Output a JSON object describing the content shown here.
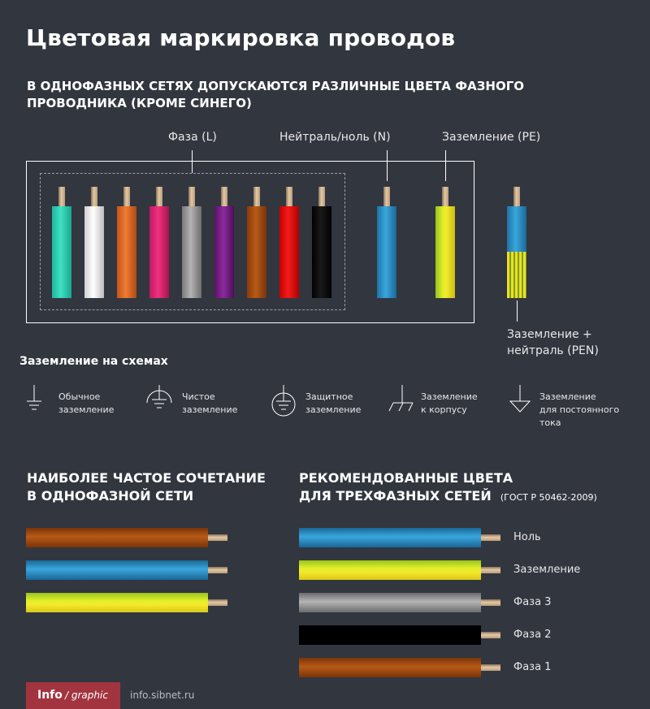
{
  "title": "Цветовая маркировка проводов",
  "subtitle": "В ОДНОФАЗНЫХ СЕТЯХ ДОПУСКАЮТСЯ РАЗЛИЧНЫЕ ЦВЕТА ФАЗНОГО ПРОВОДНИКА (КРОМЕ СИНЕГО)",
  "labels": {
    "phase": "Фаза (L)",
    "neutral": "Нейтраль/ноль (N)",
    "earth": "Заземление (PE)",
    "pen_line1": "Заземление +",
    "pen_line2": "нейтраль (PEN)"
  },
  "phase_wire_colors": [
    "turquoise",
    "white",
    "orange",
    "pink",
    "grey",
    "violet",
    "brown",
    "red",
    "black"
  ],
  "colors": {
    "background": "#32363f",
    "neutral_blue": "#2a8fc7",
    "earth_green": "#b9d32b",
    "earth_yellow": "#f2e52b",
    "brown": "#9a4a12",
    "badge": "#a2343f"
  },
  "grounding": {
    "heading": "Заземление на схемах",
    "symbols": [
      {
        "icon": "ordinary-ground-icon",
        "line1": "Обычное",
        "line2": "заземление",
        "line3": ""
      },
      {
        "icon": "clean-ground-icon",
        "line1": "Чистое",
        "line2": "заземление",
        "line3": ""
      },
      {
        "icon": "protective-ground-icon",
        "line1": "Защитное",
        "line2": "заземление",
        "line3": ""
      },
      {
        "icon": "chassis-ground-icon",
        "line1": "Заземление",
        "line2": "к корпусу",
        "line3": ""
      },
      {
        "icon": "dc-ground-icon",
        "line1": "Заземление",
        "line2": "для постоянного",
        "line3": "тока"
      }
    ]
  },
  "single_phase": {
    "heading_line1": "НАИБОЛЕЕ ЧАСТОЕ СОЧЕТАНИЕ",
    "heading_line2": "В ОДНОФАЗНОЙ СЕТИ",
    "wires": [
      "brown",
      "blue",
      "yellow-green"
    ]
  },
  "three_phase": {
    "heading_line1": "РЕКОМЕНДОВАННЫЕ ЦВЕТА",
    "heading_line2": "ДЛЯ ТРЕХФАЗНЫХ СЕТЕЙ",
    "standard": "(ГОСТ Р 50462-2009)",
    "wires": [
      {
        "color": "blue",
        "label": "Ноль"
      },
      {
        "color": "yellow-green",
        "label": "Заземление"
      },
      {
        "color": "grey",
        "label": "Фаза 3"
      },
      {
        "color": "black",
        "label": "Фаза 2"
      },
      {
        "color": "brown",
        "label": "Фаза 1"
      }
    ]
  },
  "footer": {
    "badge_bold": "Info",
    "badge_italic": "/ graphic",
    "site": "info.sibnet.ru"
  }
}
